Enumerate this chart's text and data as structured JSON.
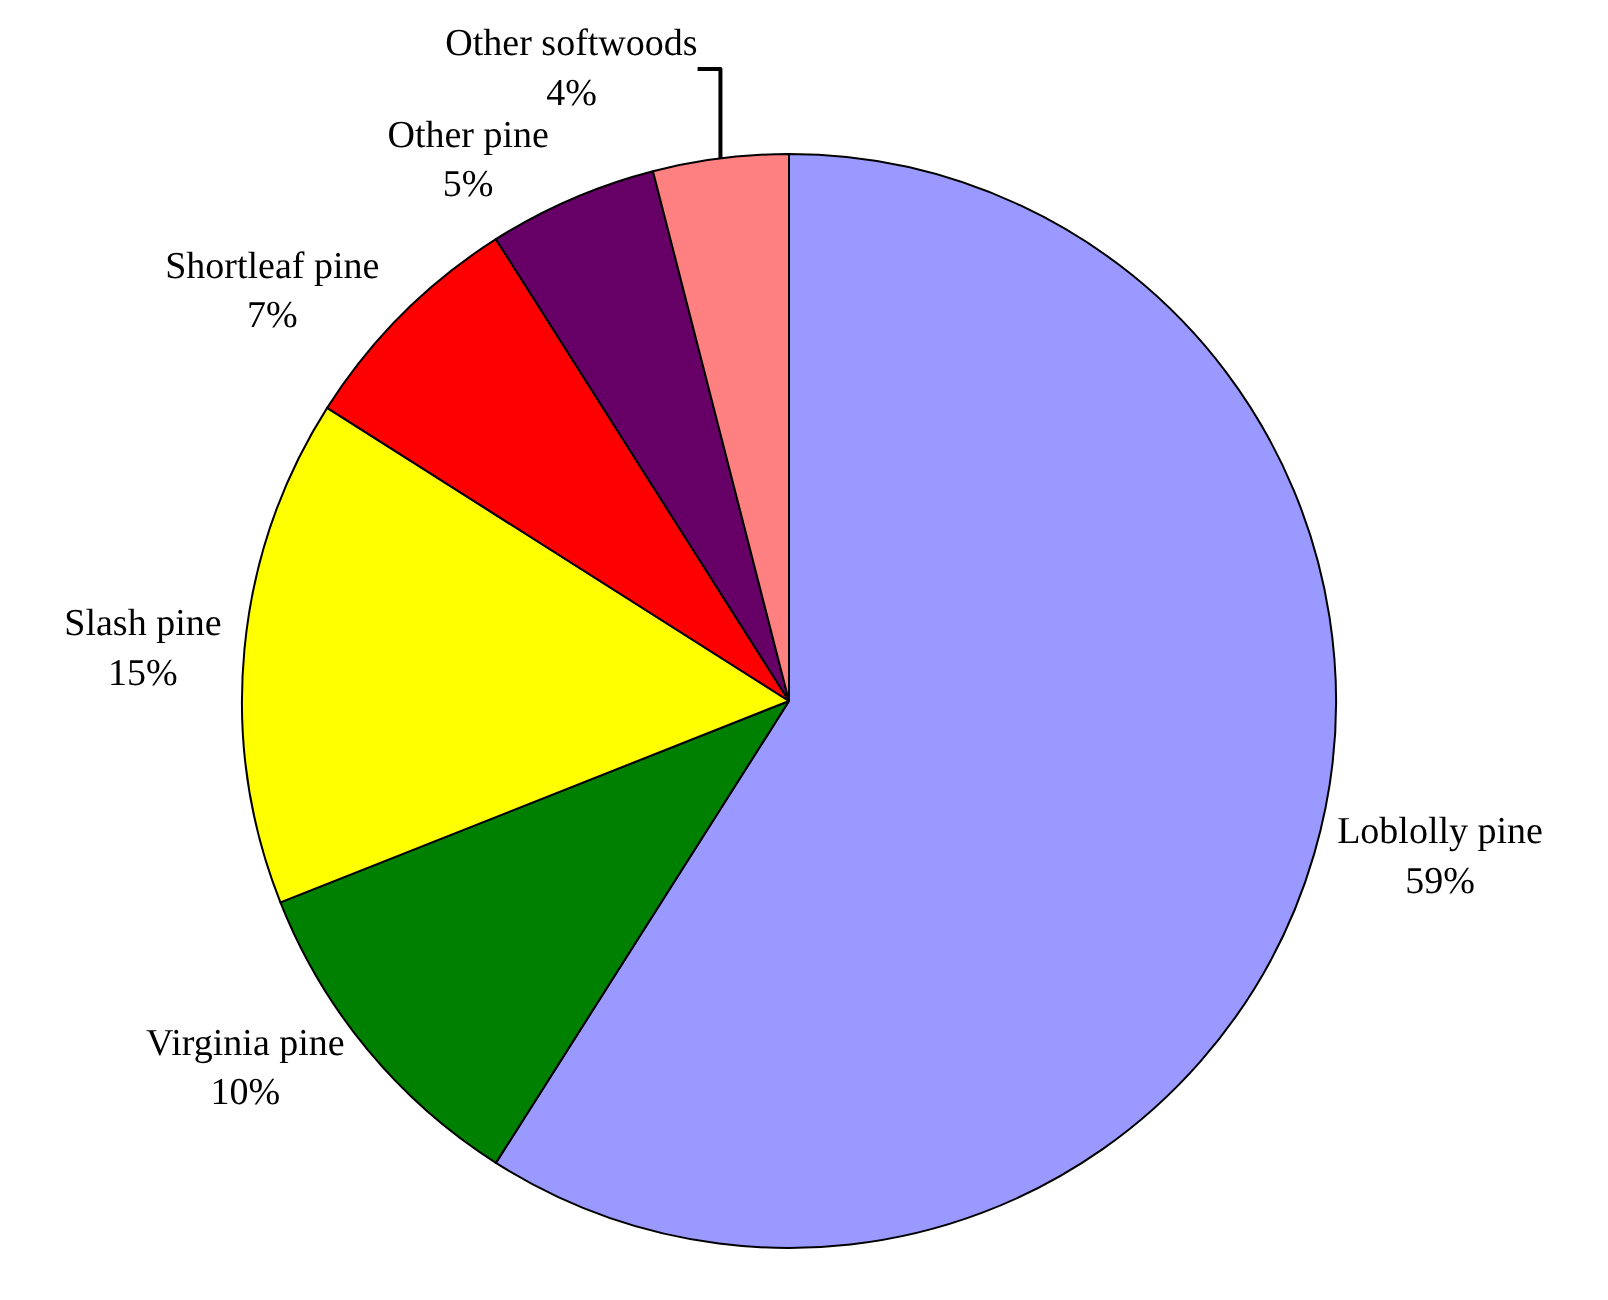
{
  "chart_data": {
    "type": "pie",
    "categories": [
      "Loblolly pine",
      "Virginia pine",
      "Slash pine",
      "Shortleaf pine",
      "Other pine",
      "Other softwoods"
    ],
    "values": [
      59,
      10,
      15,
      7,
      5,
      4
    ],
    "colors": [
      "#9999ff",
      "#008000",
      "#ffff00",
      "#ff0000",
      "#660066",
      "#ff8080"
    ],
    "value_labels": [
      "59%",
      "10%",
      "15%",
      "7%",
      "5%",
      "4%"
    ],
    "legend": false
  }
}
